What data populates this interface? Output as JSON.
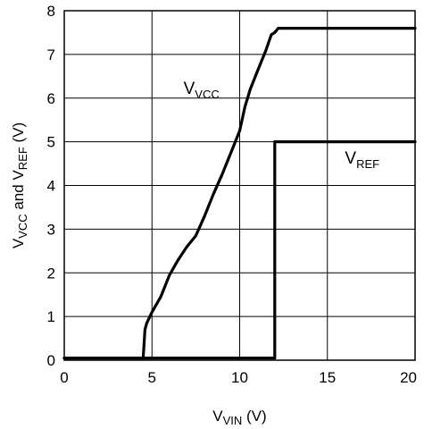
{
  "chart_data": {
    "type": "line",
    "xlim": [
      0,
      20
    ],
    "ylim": [
      0,
      8
    ],
    "x_ticks": [
      0,
      5,
      10,
      15,
      20
    ],
    "y_ticks": [
      0,
      1,
      2,
      3,
      4,
      5,
      6,
      7,
      8
    ],
    "grid": true,
    "xlabel": {
      "main": "V",
      "sub": "VIN",
      "suffix": " (V)"
    },
    "ylabel": {
      "main1": "V",
      "sub1": "VCC",
      "mid": " and V",
      "sub2": "REF",
      "suffix": " (V)"
    },
    "series": [
      {
        "name": {
          "main": "V",
          "sub": "VCC"
        },
        "x": [
          0,
          4.5,
          4.6,
          4.7,
          5.0,
          5.5,
          6.0,
          6.5,
          7.0,
          7.5,
          8.0,
          8.5,
          9.0,
          9.5,
          10.0,
          10.3,
          10.6,
          11.0,
          11.5,
          11.8,
          12.0,
          12.2,
          12.5,
          20
        ],
        "y": [
          0.05,
          0.05,
          0.7,
          0.85,
          1.1,
          1.45,
          1.95,
          2.3,
          2.6,
          2.85,
          3.3,
          3.8,
          4.25,
          4.75,
          5.25,
          5.8,
          6.2,
          6.6,
          7.1,
          7.45,
          7.5,
          7.6,
          7.6,
          7.6
        ]
      },
      {
        "name": {
          "main": "V",
          "sub": "REF"
        },
        "x": [
          0,
          12,
          12,
          20
        ],
        "y": [
          0.05,
          0.05,
          5,
          5
        ]
      }
    ]
  }
}
